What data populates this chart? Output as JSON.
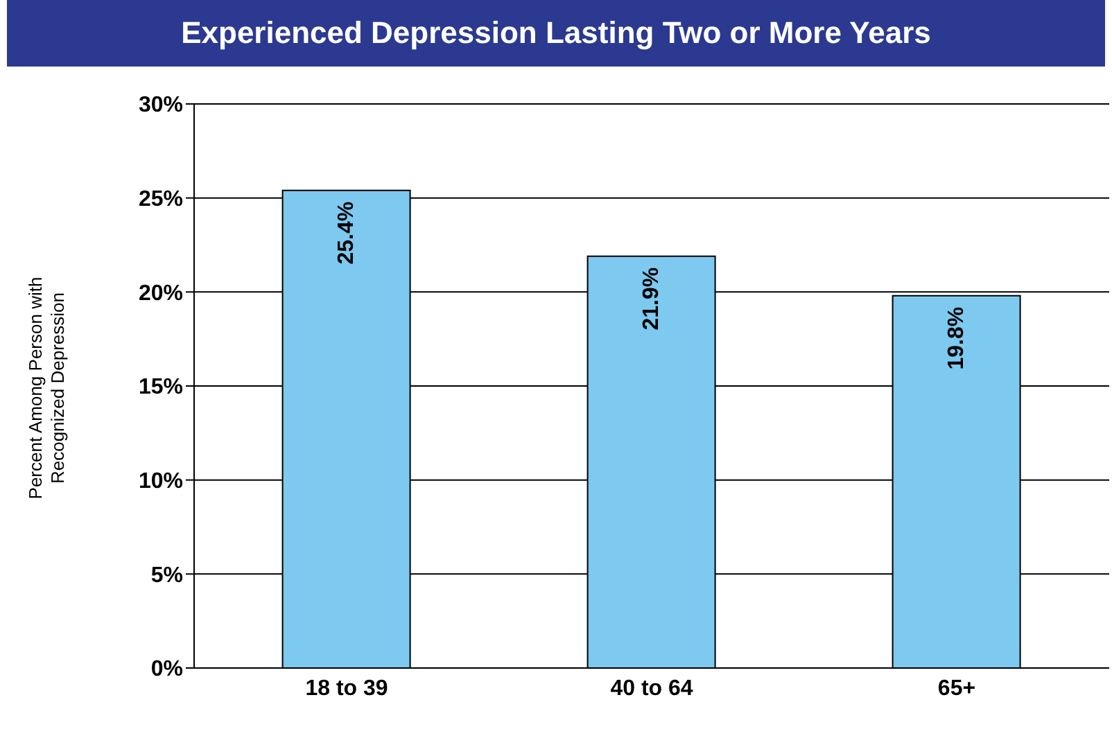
{
  "chart_data": {
    "type": "bar",
    "title": "Experienced Depression Lasting Two or More Years",
    "ylabel": "Percent Among Person with Recognized Depression",
    "categories": [
      "18 to 39",
      "40 to 64",
      "65+"
    ],
    "values": [
      25.4,
      21.9,
      19.8
    ],
    "value_labels": [
      "25.4%",
      "21.9%",
      "19.8%"
    ],
    "color": "#7dc9f0",
    "ylim": [
      0,
      30
    ],
    "yticks": [
      {
        "value": 0,
        "label": "0%"
      },
      {
        "value": 5,
        "label": "5%"
      },
      {
        "value": 10,
        "label": "10%"
      },
      {
        "value": 15,
        "label": "15%"
      },
      {
        "value": 20,
        "label": "20%"
      },
      {
        "value": 25,
        "label": "25%"
      },
      {
        "value": 30,
        "label": "30%"
      }
    ],
    "grid": "y",
    "legend": false
  }
}
